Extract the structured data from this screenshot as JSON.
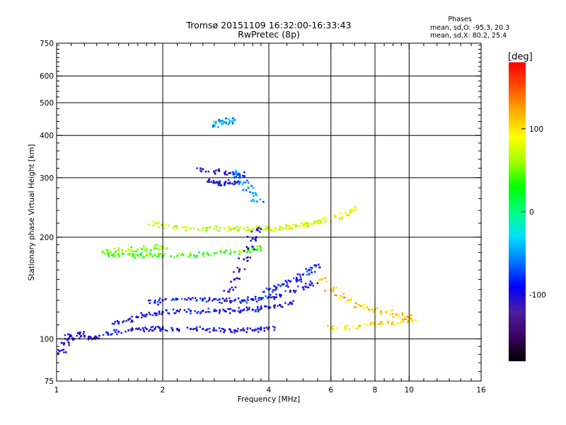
{
  "chart_data": {
    "type": "scatter",
    "title": "Tromsø 20151109 16:32:00-16:33:43",
    "subtitle": "RwPretec (8p)",
    "stats": {
      "heading": "Phases",
      "line_o": "mean, sd,O: -95.3, 20.3",
      "line_x": "mean, sd,X:  80.2, 25.4"
    },
    "xlabel": "Frequency [MHz]",
    "ylabel": "Stationary phase Virtual Height [km]",
    "x_scale": "log",
    "y_scale": "log",
    "xlim": [
      1,
      16
    ],
    "ylim": [
      75,
      750
    ],
    "x_ticks": [
      "1",
      "2",
      "4",
      "6",
      "8",
      "10",
      "16"
    ],
    "x_tick_values": [
      1,
      2,
      4,
      6,
      8,
      10,
      16
    ],
    "x_minor_ticks": [
      1.1,
      1.2,
      1.3,
      1.4,
      1.5,
      1.6,
      1.7,
      1.8,
      1.9,
      2.2,
      2.4,
      2.6,
      2.8,
      3.2,
      3.4,
      3.6,
      3.8,
      4.5,
      5,
      5.5,
      6.5,
      7,
      7.5,
      8.5,
      9,
      9.5,
      11,
      12,
      13,
      14,
      15
    ],
    "x_grid": [
      2,
      4,
      6,
      8,
      10
    ],
    "y_ticks": [
      "75",
      "100",
      "200",
      "300",
      "400",
      "500",
      "600",
      "750"
    ],
    "y_tick_values": [
      75,
      100,
      200,
      300,
      400,
      500,
      600,
      750
    ],
    "y_minor_ticks": [
      80,
      85,
      90,
      95,
      110,
      120,
      130,
      140,
      150,
      160,
      170,
      180,
      190,
      220,
      240,
      260,
      280,
      320,
      340,
      360,
      380,
      420,
      440,
      460,
      480,
      520,
      540,
      560,
      580,
      620,
      640,
      660,
      680,
      700,
      720,
      740
    ],
    "y_grid": [
      100,
      200,
      300,
      400,
      500,
      600
    ],
    "grid": true,
    "colorbar": {
      "label": "[deg]",
      "range": [
        -180,
        180
      ],
      "ticks": [
        "100",
        "0",
        "-100"
      ],
      "tick_values": [
        100,
        0,
        -100
      ],
      "colors": [
        "#000000",
        "#3c0060",
        "#4b1fa0",
        "#0000ff",
        "#0078ff",
        "#00e0ff",
        "#00ff80",
        "#00ff00",
        "#a0ff00",
        "#ffff00",
        "#ffb000",
        "#ff5000",
        "#ff0000"
      ]
    },
    "series": [
      {
        "x": [
          1.02,
          1.05,
          1.08,
          1.1,
          1.15,
          1.2,
          1.25,
          1.3,
          1.4,
          1.5,
          1.6,
          1.7,
          1.8,
          1.9,
          2.0,
          2.2,
          2.4,
          2.6,
          2.8,
          3.0,
          3.2,
          3.4,
          3.6,
          3.8,
          4.0
        ],
        "h": [
          92,
          97,
          100,
          102,
          104,
          102,
          101,
          101,
          103,
          105,
          106,
          107,
          107,
          107,
          107,
          107,
          107,
          107,
          106,
          106,
          106,
          106,
          106,
          107,
          108
        ],
        "phase": -100
      },
      {
        "x": [
          1.5,
          1.6,
          1.7,
          1.8,
          1.9,
          2.0,
          2.2,
          2.4,
          2.6,
          2.8,
          3.0,
          3.2,
          3.4,
          3.6,
          3.8,
          4.0,
          4.3,
          4.6
        ],
        "h": [
          112,
          114,
          116,
          118,
          119,
          120,
          121,
          121,
          121,
          121,
          121,
          121,
          122,
          122,
          123,
          124,
          126,
          128
        ],
        "phase": -95
      },
      {
        "x": [
          1.9,
          2.0,
          2.2,
          2.4,
          2.6,
          2.8,
          3.0,
          3.2,
          3.4,
          3.6,
          3.8,
          4.0,
          4.3,
          4.6,
          5.0,
          5.3
        ],
        "h": [
          128,
          130,
          131,
          131,
          131,
          131,
          130,
          130,
          130,
          131,
          132,
          133,
          135,
          138,
          142,
          146
        ],
        "phase": -90
      },
      {
        "x": [
          1.4,
          1.5,
          1.6,
          1.7,
          1.8,
          1.9,
          2.0,
          2.2,
          2.4,
          2.6,
          2.8,
          3.0,
          3.2,
          3.4,
          3.6,
          3.8
        ],
        "h": [
          178,
          178,
          178,
          177,
          177,
          177,
          176,
          176,
          177,
          178,
          179,
          180,
          181,
          182,
          184,
          186
        ],
        "phase": 40
      },
      {
        "x": [
          1.4,
          1.5,
          1.6,
          1.7,
          1.8,
          1.9,
          2.0
        ],
        "h": [
          183,
          183,
          184,
          184,
          185,
          186,
          187
        ],
        "phase": 55
      },
      {
        "x": [
          1.9,
          2.0,
          2.2,
          2.4,
          2.6,
          2.8,
          3.0,
          3.2,
          3.4,
          3.6,
          3.8,
          4.0,
          4.3,
          4.6,
          5.0,
          5.3,
          5.6
        ],
        "h": [
          220,
          216,
          213,
          212,
          212,
          212,
          212,
          212,
          212,
          212,
          212,
          213,
          214,
          215,
          217,
          219,
          222
        ],
        "phase": 75
      },
      {
        "x": [
          2.6,
          2.8,
          3.0,
          3.2,
          3.3
        ],
        "h": [
          318,
          313,
          310,
          308,
          307
        ],
        "phase": -110
      },
      {
        "x": [
          2.7,
          2.8,
          2.9,
          3.0,
          3.1,
          3.2
        ],
        "h": [
          292,
          290,
          289,
          289,
          290,
          292
        ],
        "phase": -100
      },
      {
        "x": [
          3.2,
          3.3,
          3.4,
          3.5,
          3.6,
          3.7
        ],
        "h": [
          310,
          300,
          290,
          280,
          270,
          255
        ],
        "phase": -50
      },
      {
        "x": [
          2.8,
          2.9,
          3.0,
          3.1,
          3.2
        ],
        "h": [
          430,
          440,
          438,
          442,
          445
        ],
        "phase": -50
      },
      {
        "x": [
          3.0,
          3.1,
          3.2,
          3.3,
          3.4,
          3.5,
          3.6,
          3.7
        ],
        "h": [
          130,
          140,
          150,
          160,
          172,
          185,
          198,
          210
        ],
        "phase": -115
      },
      {
        "x": [
          4.0,
          4.2,
          4.4,
          4.6,
          4.8,
          5.0,
          5.2,
          5.4
        ],
        "h": [
          140,
          142,
          145,
          148,
          150,
          155,
          160,
          165
        ],
        "phase": -90
      },
      {
        "x": [
          4.2,
          4.6,
          5.0,
          5.4,
          5.8,
          6.2,
          6.6,
          7.0
        ],
        "h": [
          212,
          214,
          218,
          222,
          226,
          230,
          236,
          242
        ],
        "phase": 90
      },
      {
        "x": [
          5.6,
          6.0,
          6.4,
          6.8,
          7.2,
          7.6,
          8.0,
          8.6,
          9.2,
          10.0
        ],
        "h": [
          150,
          140,
          134,
          130,
          126,
          124,
          122,
          120,
          118,
          116
        ],
        "phase": 110
      },
      {
        "x": [
          6.0,
          6.6,
          7.2,
          7.8,
          8.4,
          9.0,
          9.6,
          10.2
        ],
        "h": [
          108,
          108,
          109,
          110,
          111,
          112,
          113,
          114
        ],
        "phase": 100
      }
    ]
  }
}
